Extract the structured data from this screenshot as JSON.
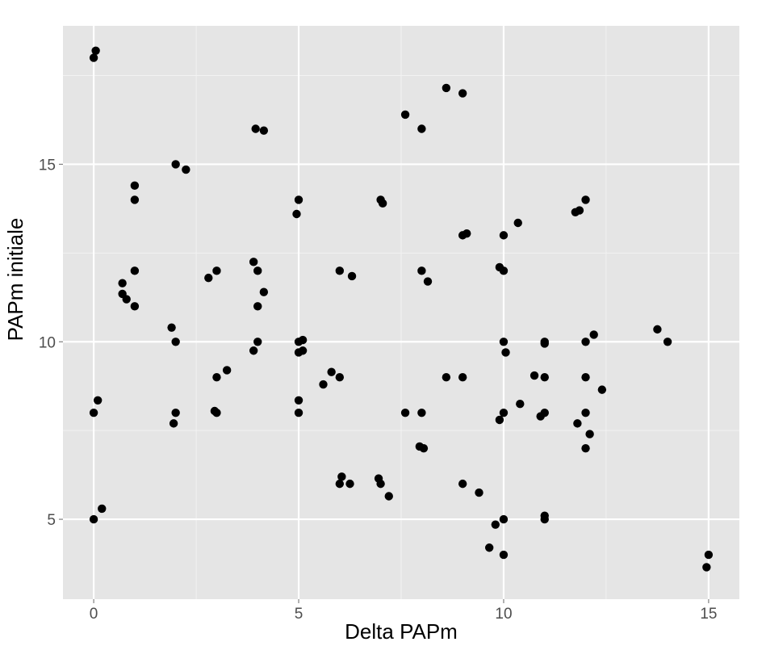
{
  "chart_data": {
    "type": "scatter",
    "title": "",
    "xlabel": "Delta PAPm",
    "ylabel": "PAPm  initiale",
    "xlim": [
      -0.75,
      15.75
    ],
    "ylim": [
      2.75,
      18.9
    ],
    "x_ticks": [
      0,
      5,
      10,
      15
    ],
    "y_ticks": [
      5,
      10,
      15
    ],
    "x_tick_labels": [
      "0",
      "5",
      "10",
      "15"
    ],
    "y_tick_labels": [
      "5",
      "10",
      "15"
    ],
    "grid": true,
    "legend": "none",
    "colors": {
      "panel": "#e5e5e5",
      "grid": "#ffffff",
      "point": "#000000"
    },
    "points": [
      [
        0.0,
        18.0
      ],
      [
        0.05,
        18.2
      ],
      [
        2.0,
        15.0
      ],
      [
        2.25,
        14.85
      ],
      [
        1.0,
        14.4
      ],
      [
        1.0,
        14.0
      ],
      [
        1.0,
        12.0
      ],
      [
        0.7,
        11.65
      ],
      [
        0.7,
        11.35
      ],
      [
        0.8,
        11.2
      ],
      [
        1.0,
        11.0
      ],
      [
        0.0,
        8.0
      ],
      [
        0.1,
        8.35
      ],
      [
        0.0,
        5.0
      ],
      [
        0.2,
        5.3
      ],
      [
        1.9,
        10.4
      ],
      [
        2.0,
        10.0
      ],
      [
        2.0,
        8.0
      ],
      [
        1.95,
        7.7
      ],
      [
        2.8,
        11.8
      ],
      [
        3.0,
        12.0
      ],
      [
        3.0,
        9.0
      ],
      [
        3.25,
        9.2
      ],
      [
        2.95,
        8.05
      ],
      [
        3.0,
        8.0
      ],
      [
        3.95,
        16.0
      ],
      [
        4.15,
        15.95
      ],
      [
        3.9,
        12.25
      ],
      [
        4.0,
        12.0
      ],
      [
        4.15,
        11.4
      ],
      [
        4.0,
        11.0
      ],
      [
        4.0,
        10.0
      ],
      [
        3.9,
        9.75
      ],
      [
        4.95,
        13.6
      ],
      [
        5.0,
        14.0
      ],
      [
        5.0,
        10.0
      ],
      [
        5.1,
        10.05
      ],
      [
        5.0,
        9.7
      ],
      [
        5.1,
        9.75
      ],
      [
        5.0,
        8.35
      ],
      [
        5.0,
        8.0
      ],
      [
        6.0,
        12.0
      ],
      [
        6.3,
        11.85
      ],
      [
        5.8,
        9.15
      ],
      [
        6.0,
        9.0
      ],
      [
        5.6,
        8.8
      ],
      [
        6.05,
        6.2
      ],
      [
        6.0,
        6.0
      ],
      [
        6.25,
        6.0
      ],
      [
        7.0,
        14.0
      ],
      [
        7.05,
        13.9
      ],
      [
        6.95,
        6.15
      ],
      [
        7.0,
        6.0
      ],
      [
        7.2,
        5.65
      ],
      [
        7.6,
        16.4
      ],
      [
        8.0,
        16.0
      ],
      [
        8.0,
        12.0
      ],
      [
        8.15,
        11.7
      ],
      [
        7.6,
        8.0
      ],
      [
        8.0,
        8.0
      ],
      [
        7.95,
        7.05
      ],
      [
        8.05,
        7.0
      ],
      [
        8.6,
        17.15
      ],
      [
        9.0,
        17.0
      ],
      [
        9.0,
        13.0
      ],
      [
        9.1,
        13.05
      ],
      [
        8.6,
        9.0
      ],
      [
        9.0,
        9.0
      ],
      [
        9.0,
        6.0
      ],
      [
        9.4,
        5.75
      ],
      [
        9.9,
        12.1
      ],
      [
        10.0,
        12.0
      ],
      [
        10.0,
        13.0
      ],
      [
        10.35,
        13.35
      ],
      [
        10.0,
        10.0
      ],
      [
        10.05,
        9.7
      ],
      [
        9.9,
        7.8
      ],
      [
        10.0,
        8.0
      ],
      [
        10.4,
        8.25
      ],
      [
        10.75,
        9.05
      ],
      [
        11.0,
        9.0
      ],
      [
        10.9,
        7.9
      ],
      [
        11.0,
        8.0
      ],
      [
        11.0,
        10.0
      ],
      [
        11.0,
        9.95
      ],
      [
        11.0,
        5.1
      ],
      [
        11.0,
        5.0
      ],
      [
        9.65,
        4.2
      ],
      [
        9.8,
        4.85
      ],
      [
        10.0,
        5.0
      ],
      [
        10.0,
        4.0
      ],
      [
        11.75,
        13.65
      ],
      [
        11.85,
        13.7
      ],
      [
        12.0,
        14.0
      ],
      [
        12.0,
        10.0
      ],
      [
        12.2,
        10.2
      ],
      [
        12.0,
        9.0
      ],
      [
        12.4,
        8.65
      ],
      [
        12.0,
        8.0
      ],
      [
        11.8,
        7.7
      ],
      [
        12.1,
        7.4
      ],
      [
        12.0,
        7.0
      ],
      [
        13.75,
        10.35
      ],
      [
        14.0,
        10.0
      ],
      [
        15.0,
        4.0
      ],
      [
        14.95,
        3.65
      ]
    ]
  }
}
